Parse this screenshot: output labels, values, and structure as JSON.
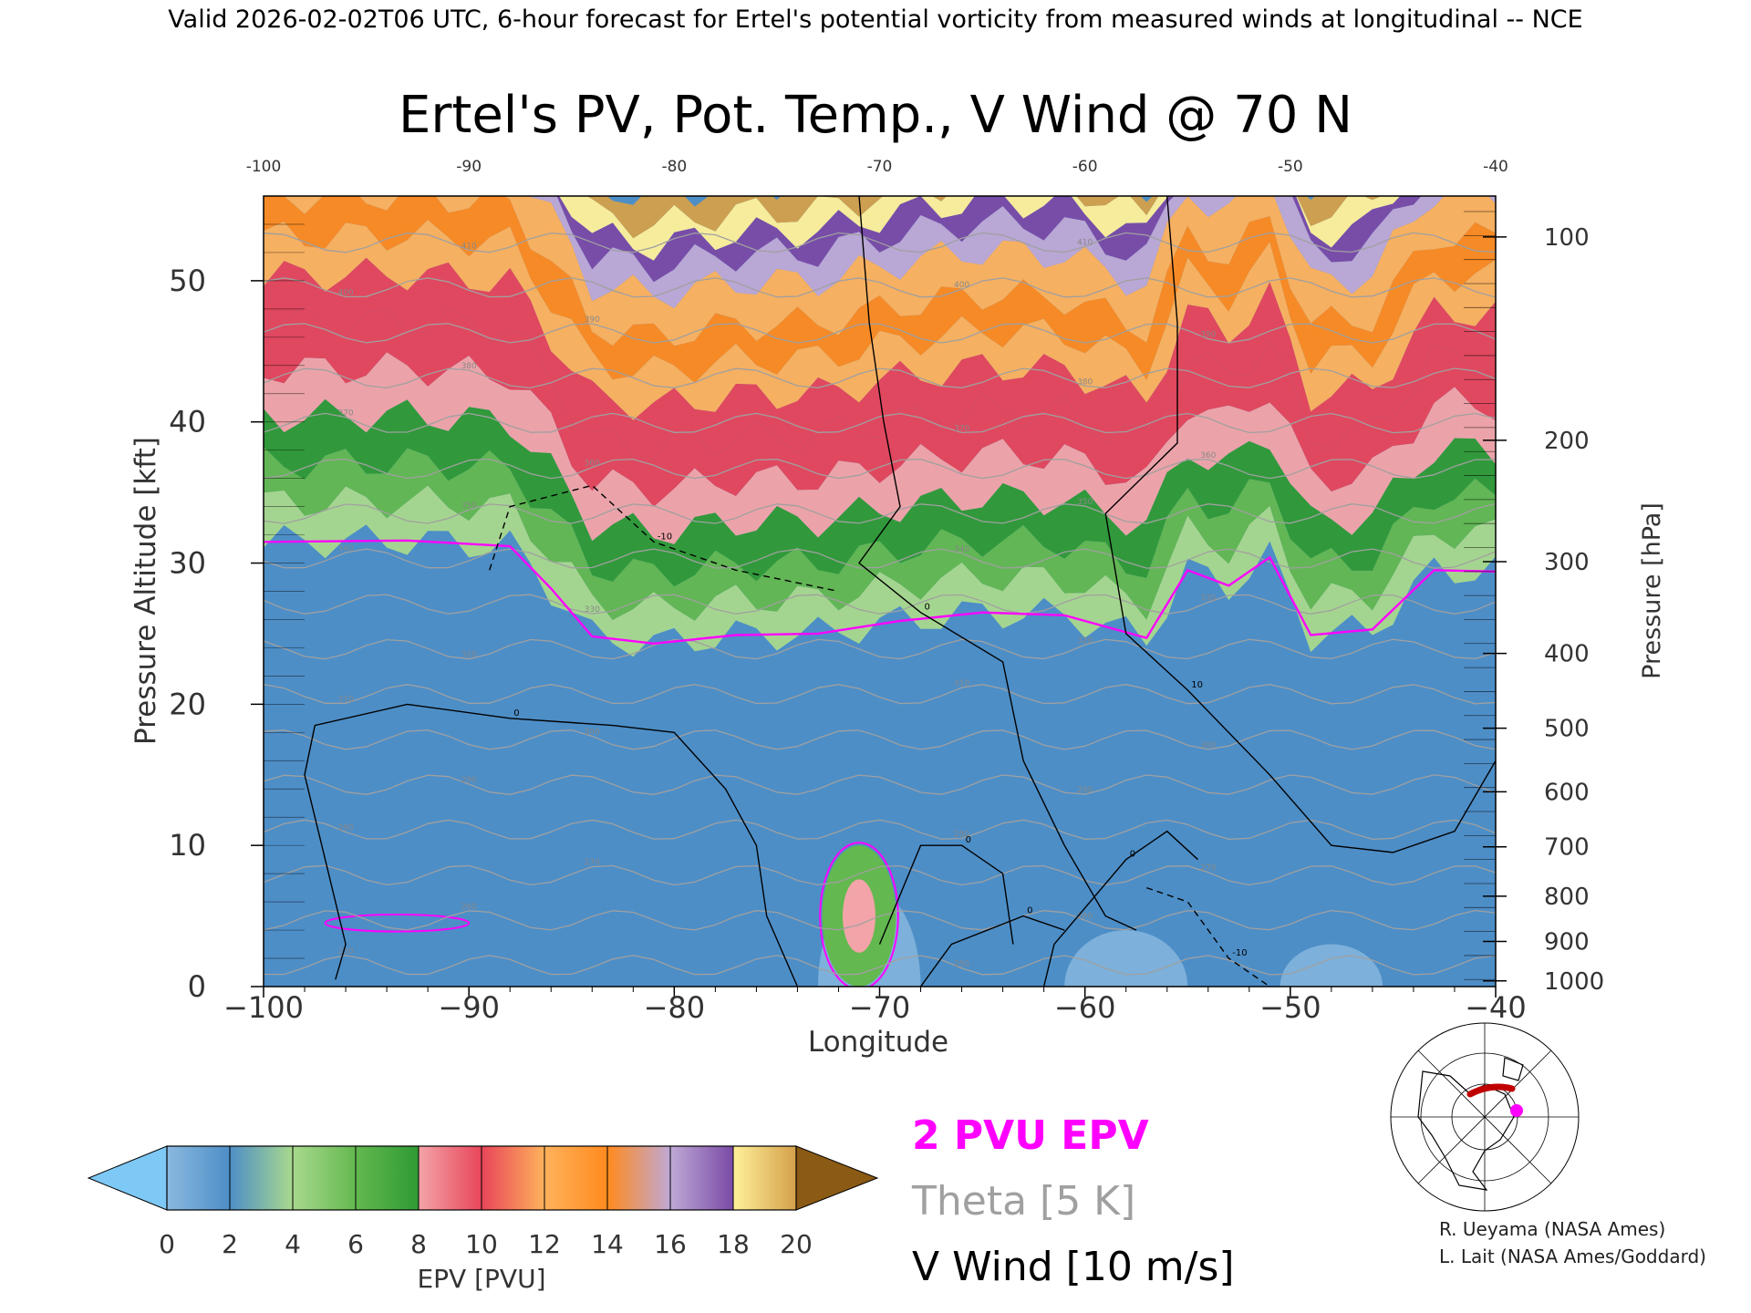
{
  "header": {
    "banner": "Valid 2026-02-02T06 UTC, 6-hour forecast for Ertel's potential vorticity from measured winds at longitudinal -- NCE"
  },
  "chart_data": {
    "type": "heatmap",
    "title": "Ertel's PV, Pot. Temp., V Wind @ 70 N",
    "xlabel": "Longitude",
    "ylabel": "Pressure Altitude [kft]",
    "y2label": "Pressure [hPa]",
    "xlim": [
      -100,
      -40
    ],
    "ylim": [
      0,
      56
    ],
    "x_ticks": [
      -100,
      -90,
      -80,
      -70,
      -60,
      -50,
      -40
    ],
    "x_tick_labels": [
      "−100",
      "−90",
      "−80",
      "−70",
      "−60",
      "−50",
      "−40"
    ],
    "x_top_ticks": [
      -100,
      -90,
      -80,
      -70,
      -60,
      -50,
      -40
    ],
    "x_top_tick_labels": [
      "-100",
      "-90",
      "-80",
      "-70",
      "-60",
      "-50",
      "-40"
    ],
    "y_ticks": [
      0,
      10,
      20,
      30,
      40,
      50
    ],
    "y_tick_labels": [
      "0",
      "10",
      "20",
      "30",
      "40",
      "50"
    ],
    "pressure_ticks": [
      {
        "hpa": "100",
        "kft": 53.1
      },
      {
        "hpa": "200",
        "kft": 38.7
      },
      {
        "hpa": "300",
        "kft": 30.1
      },
      {
        "hpa": "400",
        "kft": 23.6
      },
      {
        "hpa": "500",
        "kft": 18.3
      },
      {
        "hpa": "600",
        "kft": 13.8
      },
      {
        "hpa": "700",
        "kft": 9.9
      },
      {
        "hpa": "800",
        "kft": 6.4
      },
      {
        "hpa": "900",
        "kft": 3.2
      },
      {
        "hpa": "1000",
        "kft": 0.4
      }
    ],
    "colorbar": {
      "label": "EPV [PVU]",
      "ticks": [
        "0",
        "2",
        "4",
        "6",
        "8",
        "10",
        "12",
        "14",
        "16",
        "18",
        "20"
      ],
      "under_color": "#7ec8f5",
      "over_color": "#8b5a14",
      "colors": [
        "#8ab9df",
        "#4d8ec7",
        "#a9d98d",
        "#63b84f",
        "#2f9a34",
        "#f3a4a8",
        "#e8455a",
        "#ffb25c",
        "#ff8a1e",
        "#bfa9d6",
        "#7a4aa6",
        "#fff19a",
        "#d4a04a"
      ]
    },
    "pv_2pvu_contour": [
      [
        -100,
        31.5
      ],
      [
        -93,
        31.6
      ],
      [
        -88,
        31.2
      ],
      [
        -86,
        28.2
      ],
      [
        -84,
        24.8
      ],
      [
        -81,
        24.3
      ],
      [
        -77,
        24.9
      ],
      [
        -73,
        25.0
      ],
      [
        -69,
        25.9
      ],
      [
        -65,
        26.5
      ],
      [
        -61,
        26.3
      ],
      [
        -57,
        24.7
      ],
      [
        -55,
        29.5
      ],
      [
        -53,
        28.4
      ],
      [
        -51,
        30.4
      ],
      [
        -49,
        24.9
      ],
      [
        -46,
        25.3
      ],
      [
        -43,
        29.5
      ],
      [
        -40,
        29.4
      ]
    ],
    "theta_levels": [
      "250",
      "260",
      "270",
      "280",
      "290",
      "300",
      "310",
      "320",
      "330",
      "340",
      "350",
      "360",
      "370",
      "380",
      "390",
      "400",
      "410"
    ],
    "vwind_contours": [
      {
        "label": "0",
        "points": [
          [
            -96.5,
            0.5
          ],
          [
            -96,
            3
          ],
          [
            -97,
            9
          ],
          [
            -98,
            15
          ],
          [
            -97.5,
            18.5
          ],
          [
            -93,
            20
          ],
          [
            -88,
            19
          ],
          [
            -83,
            18.5
          ],
          [
            -80,
            18
          ],
          [
            -77.5,
            14
          ],
          [
            -76,
            10
          ],
          [
            -75.5,
            5
          ],
          [
            -74,
            0
          ]
        ]
      },
      {
        "label": "-10",
        "points": [
          [
            -89,
            29.5
          ],
          [
            -88,
            34
          ],
          [
            -84,
            35.5
          ],
          [
            -81,
            31.5
          ],
          [
            -77,
            29.5
          ],
          [
            -72,
            28
          ]
        ]
      },
      {
        "label": "0",
        "points": [
          [
            -71,
            56
          ],
          [
            -70.5,
            47
          ],
          [
            -69.8,
            40
          ],
          [
            -69,
            34
          ],
          [
            -71,
            30
          ],
          [
            -68,
            26.5
          ],
          [
            -64,
            23
          ],
          [
            -63,
            16
          ],
          [
            -61,
            10
          ],
          [
            -59,
            5
          ],
          [
            -57.5,
            4
          ]
        ]
      },
      {
        "label": "0",
        "points": [
          [
            -62,
            0
          ],
          [
            -61.5,
            3
          ],
          [
            -58,
            9
          ],
          [
            -56,
            11
          ],
          [
            -54.5,
            9
          ]
        ]
      },
      {
        "label": "10",
        "points": [
          [
            -56,
            56
          ],
          [
            -55.5,
            47
          ],
          [
            -55.5,
            38.5
          ],
          [
            -59,
            33.5
          ],
          [
            -58,
            25
          ],
          [
            -55,
            21
          ],
          [
            -51,
            15
          ],
          [
            -48,
            10
          ],
          [
            -45,
            9.5
          ],
          [
            -42,
            11
          ],
          [
            -40,
            16
          ]
        ]
      },
      {
        "label": "0",
        "points": [
          [
            -68,
            0
          ],
          [
            -66.5,
            3
          ],
          [
            -63,
            5
          ],
          [
            -61,
            4
          ]
        ]
      },
      {
        "label": "0",
        "points": [
          [
            -70,
            3
          ],
          [
            -68,
            10
          ],
          [
            -66,
            10
          ],
          [
            -64,
            8
          ],
          [
            -63.5,
            3
          ]
        ]
      },
      {
        "label": "-10",
        "points": [
          [
            -57,
            7
          ],
          [
            -55,
            6
          ],
          [
            -53,
            2
          ],
          [
            -51,
            0
          ]
        ]
      }
    ],
    "legend": [
      "2 PVU EPV",
      "Theta [5 K]",
      "V Wind [10 m/s]"
    ],
    "legend_colors": {
      "pv": "#ff00ff",
      "theta": "#a0a0a0",
      "vwind": "#000000"
    },
    "inset_map": "polar-stereographic-north-america",
    "inset_marker_color": "#ff00ff",
    "inset_section_color": "#c00000"
  },
  "credits": {
    "line1": "R. Ueyama (NASA Ames)",
    "line2": "L. Lait (NASA Ames/Goddard)"
  }
}
